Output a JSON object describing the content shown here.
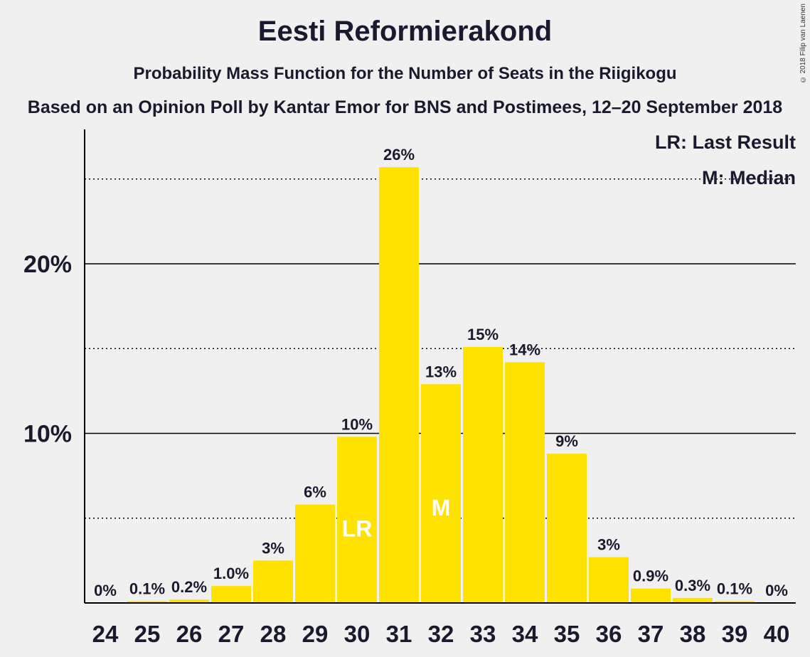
{
  "copyright": "© 2018 Filip van Laenen",
  "colors": {
    "bar": "#FFE200",
    "axis": "#000000",
    "background": "#f0f0f0",
    "text": "#1a1a2e"
  },
  "chart_data": {
    "type": "bar",
    "title": "Eesti Reformierakond",
    "subtitle": "Probability Mass Function for the Number of Seats in the Riigikogu",
    "subtitle2": "Based on an Opinion Poll by Kantar Emor for BNS and Postimees, 12–20 September 2018",
    "categories": [
      "24",
      "25",
      "26",
      "27",
      "28",
      "29",
      "30",
      "31",
      "32",
      "33",
      "34",
      "35",
      "36",
      "37",
      "38",
      "39",
      "40"
    ],
    "values": [
      0,
      0.1,
      0.2,
      1.0,
      2.5,
      5.8,
      9.8,
      25.7,
      12.9,
      15.1,
      14.2,
      8.8,
      2.7,
      0.85,
      0.3,
      0.1,
      0
    ],
    "data_labels": [
      "0%",
      "0.1%",
      "0.2%",
      "1.0%",
      "3%",
      "6%",
      "10%",
      "26%",
      "13%",
      "15%",
      "14%",
      "9%",
      "3%",
      "0.9%",
      "0.3%",
      "0.1%",
      "0%"
    ],
    "ylim": [
      0,
      27.8
    ],
    "yticks": [
      {
        "value": 10,
        "label": "10%"
      },
      {
        "value": 20,
        "label": "20%"
      }
    ],
    "dotted_gridlines": [
      5,
      15,
      25
    ],
    "solid_gridlines": [
      10,
      20
    ],
    "bar_markers": [
      {
        "category": "30",
        "label": "LR"
      },
      {
        "category": "32",
        "label": "M"
      }
    ],
    "legend": {
      "position": "top-right",
      "entries": [
        "LR: Last Result",
        "M: Median"
      ]
    }
  }
}
